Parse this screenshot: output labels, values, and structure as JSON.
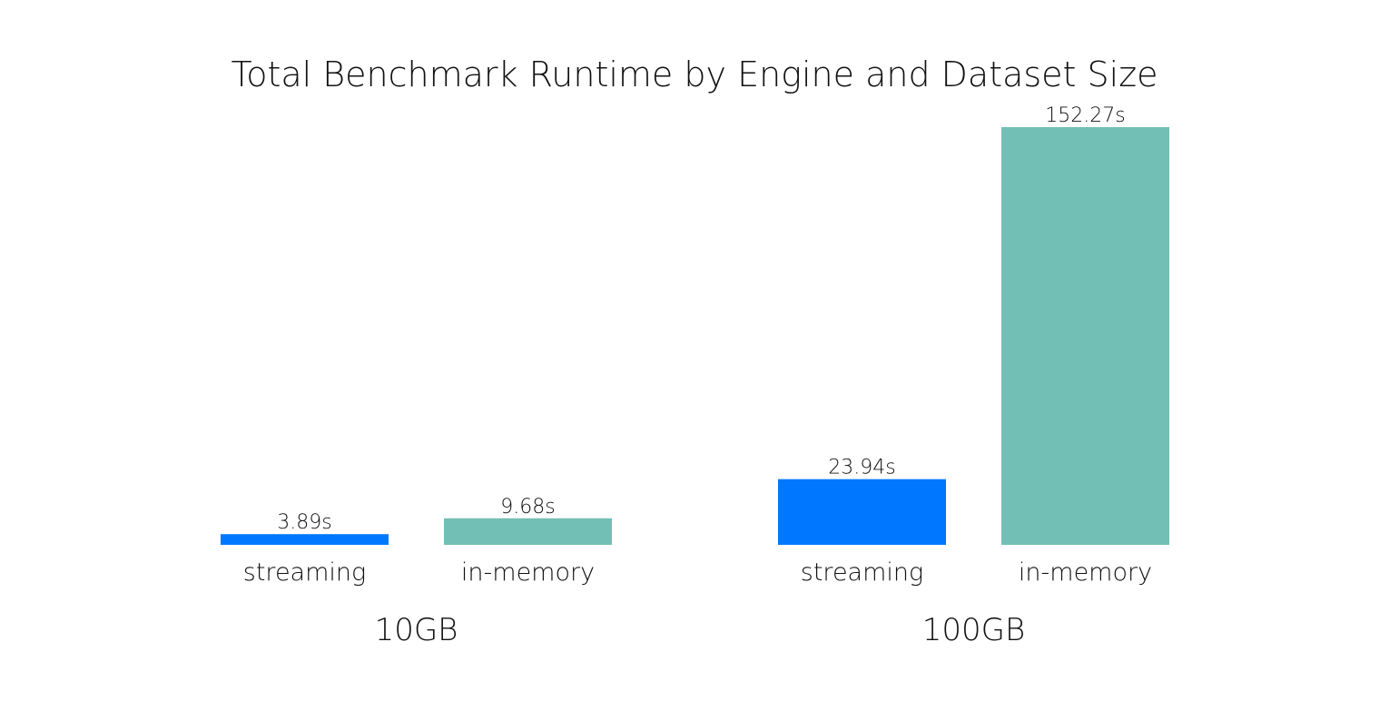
{
  "chart_data": {
    "type": "bar",
    "title": "Total Benchmark Runtime by Engine and Dataset Size",
    "xlabel": "",
    "ylabel": "",
    "grid": false,
    "ylim": [
      0,
      152.27
    ],
    "groups": [
      {
        "label": "10GB",
        "bars": [
          {
            "category": "streaming",
            "value": 3.89,
            "label": "3.89s",
            "color": "#0077FF"
          },
          {
            "category": "in-memory",
            "value": 9.68,
            "label": "9.68s",
            "color": "#72BFB5"
          }
        ]
      },
      {
        "label": "100GB",
        "bars": [
          {
            "category": "streaming",
            "value": 23.94,
            "label": "23.94s",
            "color": "#0077FF"
          },
          {
            "category": "in-memory",
            "value": 152.27,
            "label": "152.27s",
            "color": "#72BFB5"
          }
        ]
      }
    ]
  }
}
